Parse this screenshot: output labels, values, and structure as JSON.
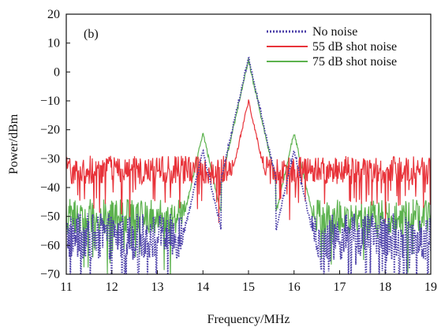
{
  "chart_data": {
    "type": "line",
    "panel_label": "(b)",
    "xlabel": "Frequency/MHz",
    "ylabel": "Power/dBm",
    "xlim": [
      11,
      19
    ],
    "ylim": [
      -70,
      20
    ],
    "x_ticks": [
      11,
      12,
      13,
      14,
      15,
      16,
      17,
      18,
      19
    ],
    "y_ticks": [
      20,
      10,
      0,
      -10,
      -20,
      -30,
      -40,
      -50,
      -60,
      -70
    ],
    "y_tick_labels": [
      "20",
      "10",
      "0",
      "−10",
      "−20",
      "−30",
      "−40",
      "−50",
      "−60",
      "−70"
    ],
    "legend_position": "top-right",
    "series": [
      {
        "name": "No noise",
        "color": "#4b3fa8",
        "style": "dotted",
        "floor_dbm": -57,
        "spread_db": 8,
        "peaks": [
          {
            "x": 14,
            "y": -27
          },
          {
            "x": 15,
            "y": 5
          },
          {
            "x": 16,
            "y": -27
          }
        ]
      },
      {
        "name": "55 dB shot noise",
        "color": "#e8333a",
        "style": "solid",
        "floor_dbm": -34,
        "spread_db": 5,
        "peaks": [
          {
            "x": 15,
            "y": -10
          }
        ]
      },
      {
        "name": "75 dB shot noise",
        "color": "#5cb24e",
        "style": "solid",
        "floor_dbm": -50,
        "spread_db": 6,
        "peaks": [
          {
            "x": 14,
            "y": -21
          },
          {
            "x": 15,
            "y": 4
          },
          {
            "x": 16,
            "y": -21
          }
        ]
      }
    ]
  }
}
